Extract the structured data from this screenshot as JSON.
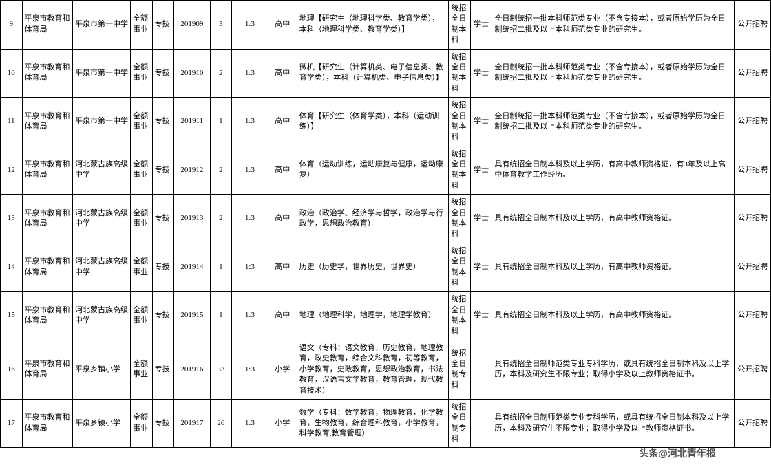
{
  "watermark": "头条@河北青年报",
  "columns": {
    "widths": [
      30,
      70,
      80,
      30,
      30,
      50,
      30,
      50,
      40,
      210,
      30,
      30,
      335,
      50
    ]
  },
  "rows": [
    {
      "idx": "9",
      "dept": "平泉市教育和体育局",
      "school": "平泉市第一中学",
      "type": "全额事业",
      "cat": "专技",
      "code": "201909",
      "num": "3",
      "ratio": "1:3",
      "level": "高中",
      "major": "地理【研究生（地理科学类、教育学类），本科（地理科学类、教育学类）】",
      "edu": "统招全日制本科",
      "deg": "学士",
      "req": "全日制统招一批本科师范类专业（不含专接本），或者原始学历为全日制统招二批及以上本科师范类专业的研究生。",
      "method": "公开招聘"
    },
    {
      "idx": "10",
      "dept": "平泉市教育和体育局",
      "school": "平泉市第一中学",
      "type": "全额事业",
      "cat": "专技",
      "code": "201910",
      "num": "2",
      "ratio": "1:3",
      "level": "高中",
      "major": "微机【研究生（计算机类、电子信息类、教育学类），本科（计算机类、电子信息类）】",
      "edu": "统招全日制本科",
      "deg": "学士",
      "req": "全日制统招一批本科师范类专业（不含专接本），或者原始学历为全日制统招二批及以上本科师范类专业的研究生。",
      "method": "公开招聘"
    },
    {
      "idx": "11",
      "dept": "平泉市教育和体育局",
      "school": "平泉市第一中学",
      "type": "全额事业",
      "cat": "专技",
      "code": "201911",
      "num": "1",
      "ratio": "1:3",
      "level": "高中",
      "major": "体育【研究生（体育学类），本科（运动训练）】",
      "edu": "统招全日制本科",
      "deg": "学士",
      "req": "全日制统招一批本科师范类专业（不含专接本），或者原始学历为全日制统招二批及以上本科师范类专业的研究生。",
      "method": "公开招聘"
    },
    {
      "idx": "12",
      "dept": "平泉市教育和体育局",
      "school": "河北蒙古族高级中学",
      "type": "全额事业",
      "cat": "专技",
      "code": "201912",
      "num": "2",
      "ratio": "1:3",
      "level": "高中",
      "major": "体育（运动训练，运动康复与健康，运动康复）",
      "edu": "统招全日制本科",
      "deg": "学士",
      "req": "具有统招全日制本科及以上学历，有高中教师资格证，有3年及以上高中体育教学工作经历。",
      "method": "公开招聘"
    },
    {
      "idx": "13",
      "dept": "平泉市教育和体育局",
      "school": "河北蒙古族高级中学",
      "type": "全额事业",
      "cat": "专技",
      "code": "201913",
      "num": "2",
      "ratio": "1:3",
      "level": "高中",
      "major": "政治（政治学、经济学与哲学，政治学与行政学，思想政治教育）",
      "edu": "统招全日制本科",
      "deg": "学士",
      "req": "具有统招全日制本科及以上学历，有高中教师资格证。",
      "method": "公开招聘"
    },
    {
      "idx": "14",
      "dept": "平泉市教育和体育局",
      "school": "河北蒙古族高级中学",
      "type": "全额事业",
      "cat": "专技",
      "code": "201914",
      "num": "1",
      "ratio": "1:3",
      "level": "高中",
      "major": "历史（历史学，世界历史，世界史）",
      "edu": "统招全日制本科",
      "deg": "学士",
      "req": "具有统招全日制本科及以上学历，有高中教师资格证。",
      "method": "公开招聘"
    },
    {
      "idx": "15",
      "dept": "平泉市教育和体育局",
      "school": "河北蒙古族高级中学",
      "type": "全额事业",
      "cat": "专技",
      "code": "201915",
      "num": "1",
      "ratio": "1:3",
      "level": "高中",
      "major": "地理（地理科学，地理学，地理学教育）",
      "edu": "统招全日制本科",
      "deg": "学士",
      "req": "具有统招全日制本科及以上学历，有高中教师资格证。",
      "method": "公开招聘"
    },
    {
      "idx": "16",
      "dept": "平泉市教育和体育局",
      "school": "平泉乡镇小学",
      "type": "全额事业",
      "cat": "专技",
      "code": "201916",
      "num": "33",
      "ratio": "1:3",
      "level": "小学",
      "major": "语文（专科：语文教育，历史教育，地理教育，政史教育，综合文科教育，初等教育，小学教育，史政教育，思想政治教育，书法教育，汉语言文学教育，教育管理，现代教育技术）",
      "edu": "统招全日制专科",
      "deg": "",
      "req": "具有统招全日制师范类专业专科学历，或具有统招全日制本科及以上学历，本科及研究生不限专业；取得小学及以上教师资格证书。",
      "method": "公开招聘"
    },
    {
      "idx": "17",
      "dept": "平泉市教育和体育局",
      "school": "平泉乡镇小学",
      "type": "全额事业",
      "cat": "专技",
      "code": "201917",
      "num": "26",
      "ratio": "1:3",
      "level": "小学",
      "major": "数学（专科：数学教育，物理教育，化学教育，生物教育，综合理科教育，小学教育，科学教育,教育管理）",
      "edu": "统招全日制专科",
      "deg": "",
      "req": "具有统招全日制师范类专业专科学历，或具有统招全日制本科及以上学历，本科及研究生不限专业；取得小学及以上教师资格证书。",
      "method": "公开招聘"
    }
  ]
}
